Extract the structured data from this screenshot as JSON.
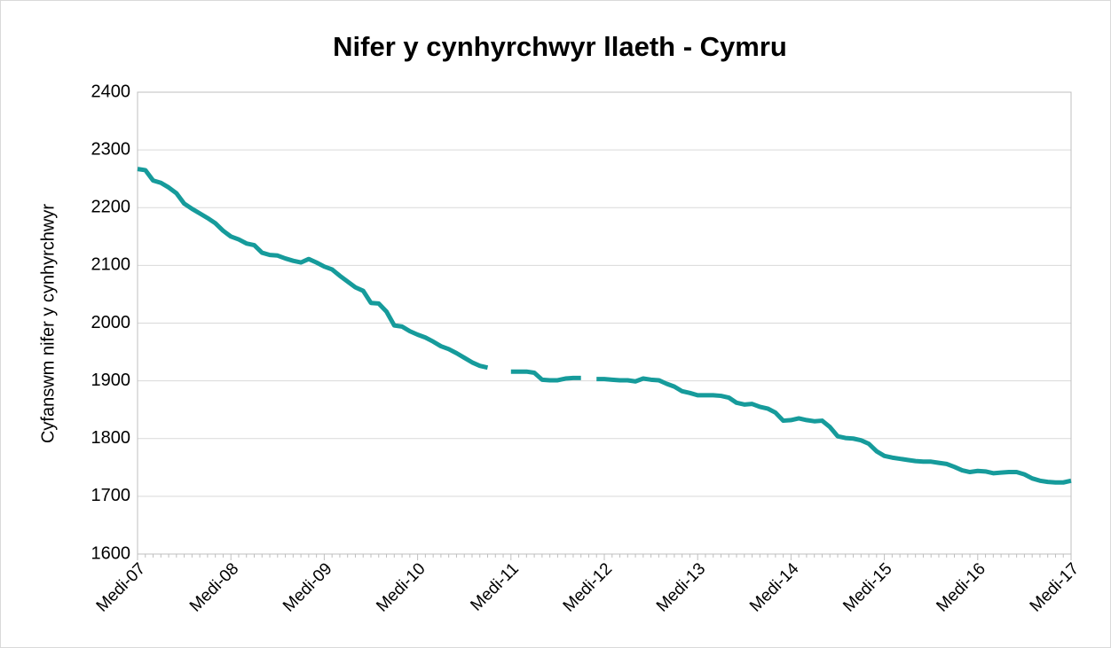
{
  "chart_data": {
    "type": "line",
    "title": "Nifer y cynhyrchwyr llaeth - Cymru",
    "y_label": "Cyfanswm nifer y cynhyrchwyr",
    "categories": [
      "Medi-07",
      null,
      null,
      null,
      null,
      null,
      null,
      null,
      null,
      null,
      null,
      null,
      "Medi-08",
      null,
      null,
      null,
      null,
      null,
      null,
      null,
      null,
      null,
      null,
      null,
      "Medi-09",
      null,
      null,
      null,
      null,
      null,
      null,
      null,
      null,
      null,
      null,
      null,
      "Medi-10",
      null,
      null,
      null,
      null,
      null,
      null,
      null,
      null,
      null,
      null,
      null,
      "Medi-11",
      null,
      null,
      null,
      null,
      null,
      null,
      null,
      null,
      null,
      null,
      null,
      "Medi-12",
      null,
      null,
      null,
      null,
      null,
      null,
      null,
      null,
      null,
      null,
      null,
      "Medi-13",
      null,
      null,
      null,
      null,
      null,
      null,
      null,
      null,
      null,
      null,
      null,
      "Medi-14",
      null,
      null,
      null,
      null,
      null,
      null,
      null,
      null,
      null,
      null,
      null,
      "Medi-15",
      null,
      null,
      null,
      null,
      null,
      null,
      null,
      null,
      null,
      null,
      null,
      "Medi-16",
      null,
      null,
      null,
      null,
      null,
      null,
      null,
      null,
      null,
      null,
      null,
      "Medi-17"
    ],
    "series": [
      {
        "color": "#169b9b",
        "values": [
          2267,
          2265,
          2247,
          2243,
          2235,
          2225,
          2207,
          2198,
          2190,
          2182,
          2173,
          2160,
          2150,
          2145,
          2138,
          2135,
          2122,
          2118,
          2117,
          2112,
          2108,
          2105,
          2111,
          2105,
          2098,
          2093,
          2082,
          2072,
          2062,
          2056,
          2035,
          2034,
          2020,
          1996,
          1994,
          1986,
          1980,
          1975,
          1968,
          1960,
          1955,
          1948,
          1940,
          1932,
          1926,
          1923,
          null,
          null,
          1916,
          1916,
          1916,
          1914,
          1902,
          1901,
          1901,
          1904,
          1905,
          1905,
          null,
          1903,
          1903,
          1902,
          1901,
          1901,
          1899,
          1904,
          1902,
          1901,
          1895,
          1890,
          1882,
          1879,
          1875,
          1875,
          1875,
          1874,
          1871,
          1862,
          1859,
          1860,
          1855,
          1852,
          1845,
          1831,
          1832,
          1835,
          1832,
          1830,
          1831,
          1820,
          1804,
          1801,
          1800,
          1797,
          1791,
          1778,
          1770,
          1767,
          1765,
          1763,
          1761,
          1760,
          1760,
          1758,
          1756,
          1751,
          1745,
          1742,
          1744,
          1743,
          1740,
          1741,
          1742,
          1742,
          1738,
          1731,
          1727,
          1725,
          1724,
          1724,
          1727
        ]
      }
    ],
    "ylim": [
      1600,
      2400
    ],
    "yticks": [
      1600,
      1700,
      1800,
      1900,
      2000,
      2100,
      2200,
      2300,
      2400
    ],
    "grid": true
  }
}
